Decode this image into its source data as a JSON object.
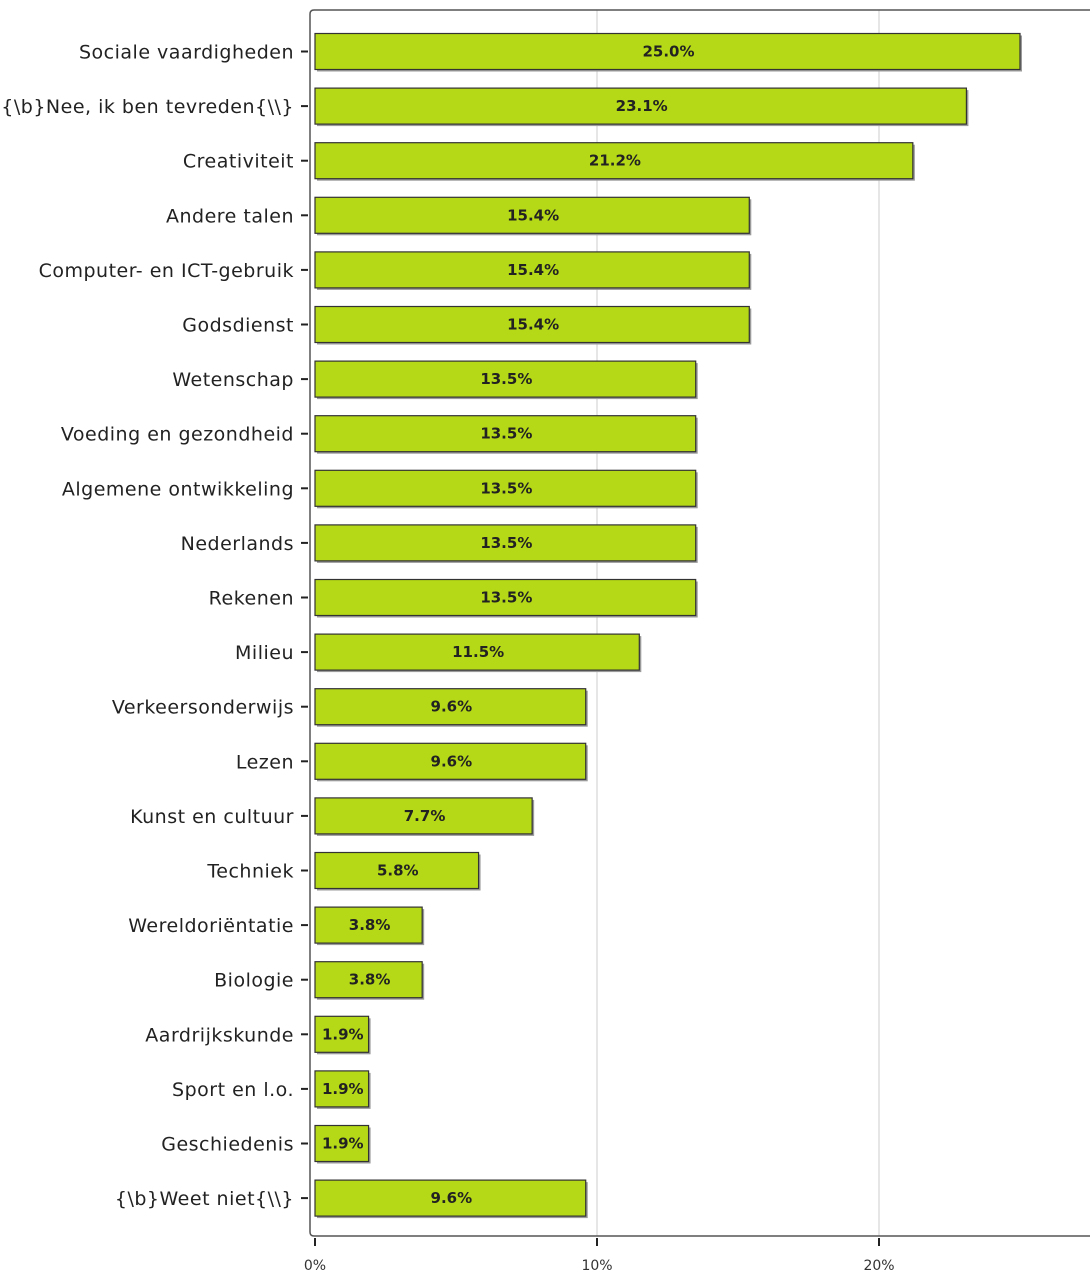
{
  "chart_data": {
    "type": "bar",
    "orientation": "horizontal",
    "categories": [
      "Sociale vaardigheden",
      "{\\b}Nee, ik ben tevreden{\\\\}",
      "Creativiteit",
      "Andere talen",
      "Computer- en ICT-gebruik",
      "Godsdienst",
      "Wetenschap",
      "Voeding en gezondheid",
      "Algemene ontwikkeling",
      "Nederlands",
      "Rekenen",
      "Milieu",
      "Verkeersonderwijs",
      "Lezen",
      "Kunst en cultuur",
      "Techniek",
      "Wereldoriëntatie",
      "Biologie",
      "Aardrijkskunde",
      "Sport en l.o.",
      "Geschiedenis",
      "{\\b}Weet niet{\\\\}"
    ],
    "values": [
      25.0,
      23.1,
      21.2,
      15.4,
      15.4,
      15.4,
      13.5,
      13.5,
      13.5,
      13.5,
      13.5,
      11.5,
      9.6,
      9.6,
      7.7,
      5.8,
      3.8,
      3.8,
      1.9,
      1.9,
      1.9,
      9.6
    ],
    "value_labels": [
      "25.0%",
      "23.1%",
      "21.2%",
      "15.4%",
      "15.4%",
      "15.4%",
      "13.5%",
      "13.5%",
      "13.5%",
      "13.5%",
      "13.5%",
      "11.5%",
      "9.6%",
      "9.6%",
      "7.7%",
      "5.8%",
      "3.8%",
      "3.8%",
      "1.9%",
      "1.9%",
      "1.9%",
      "9.6%"
    ],
    "xticks": [
      0,
      10,
      20
    ],
    "xtick_labels": [
      "0%",
      "10%",
      "20%"
    ],
    "xlim": [
      0,
      27.3
    ],
    "grid": true,
    "title": "",
    "xlabel": "",
    "ylabel": "",
    "colors": {
      "bar": "#b5d916",
      "bar_border": "#333333",
      "grid": "#cccccc",
      "axis": "#555555"
    }
  }
}
